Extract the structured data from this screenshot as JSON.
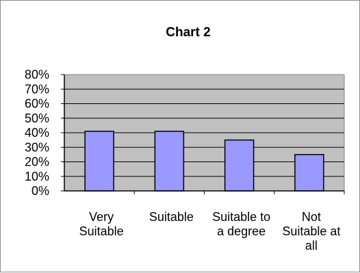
{
  "chart_data": {
    "type": "bar",
    "title": "Chart 2",
    "categories": [
      [
        "Very",
        "Suitable"
      ],
      [
        "Suitable"
      ],
      [
        "Suitable to",
        "a degree"
      ],
      [
        "Not",
        "Suitable at",
        "all"
      ]
    ],
    "series": [
      {
        "values": [
          41,
          41,
          35,
          25
        ],
        "color": "#9999ff"
      }
    ],
    "ylim": [
      0,
      80
    ],
    "ytick_step": 10,
    "ytick_format": "%",
    "grid": true,
    "plot_background": "#c0c0c0",
    "legend": "none"
  }
}
